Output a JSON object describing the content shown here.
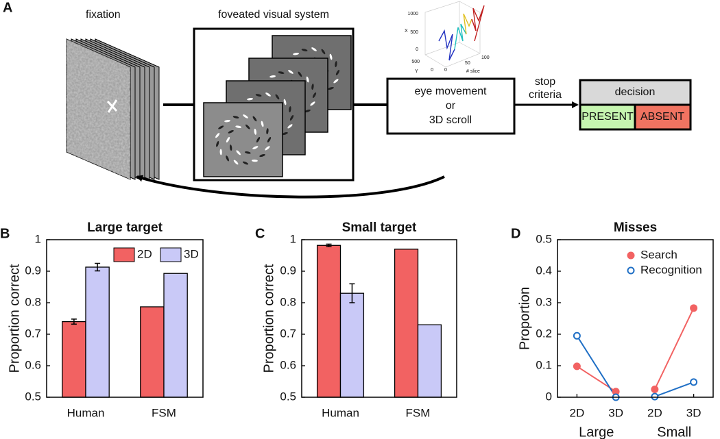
{
  "diagram": {
    "panel": "A",
    "fixation": "fixation",
    "foveated": "foveated visual system",
    "scroll": [
      "eye movement",
      "or",
      "3D scroll"
    ],
    "stop": [
      "stop",
      "criteria"
    ],
    "decision": {
      "title": "decision",
      "present": "PRESENT",
      "absent": "ABSENT"
    },
    "inset": {
      "x_label": "X",
      "y_label": "Y",
      "z_label": "# slice",
      "x_ticks": [
        "1000",
        "500",
        "0"
      ],
      "y_ticks": [
        "500",
        "0"
      ],
      "z_ticks": [
        "0",
        "50",
        "100"
      ]
    }
  },
  "chart_data": [
    {
      "type": "bar",
      "panel": "B",
      "title": "Large target",
      "ylabel": "Proportion correct",
      "categories": [
        "Human",
        "FSM"
      ],
      "ylim": [
        0.5,
        1
      ],
      "yticks": [
        0.5,
        0.6,
        0.7,
        0.8,
        0.9,
        1
      ],
      "legend": "top-right",
      "series": [
        {
          "name": "2D",
          "color": "#f26262",
          "values": [
            0.74,
            0.787
          ],
          "errors": [
            0.008,
            null
          ]
        },
        {
          "name": "3D",
          "color": "#c9c9f7",
          "values": [
            0.913,
            0.893
          ],
          "errors": [
            0.012,
            null
          ]
        }
      ]
    },
    {
      "type": "bar",
      "panel": "C",
      "title": "Small target",
      "ylabel": "Proportion correct",
      "categories": [
        "Human",
        "FSM"
      ],
      "ylim": [
        0.5,
        1
      ],
      "yticks": [
        0.5,
        0.6,
        0.7,
        0.8,
        0.9,
        1
      ],
      "series": [
        {
          "name": "2D",
          "color": "#f26262",
          "values": [
            0.982,
            0.97
          ],
          "errors": [
            0.004,
            null
          ]
        },
        {
          "name": "3D",
          "color": "#c9c9f7",
          "values": [
            0.83,
            0.73
          ],
          "errors": [
            0.03,
            null
          ]
        }
      ]
    },
    {
      "type": "line",
      "panel": "D",
      "title": "Misses",
      "ylabel": "Proportion",
      "categories": [
        "2D",
        "3D",
        "2D",
        "3D"
      ],
      "groups": [
        "Large",
        "Small"
      ],
      "ylim": [
        0,
        0.5
      ],
      "yticks": [
        0,
        0.1,
        0.2,
        0.3,
        0.4,
        0.5
      ],
      "legend": "top-right",
      "series": [
        {
          "name": "Search",
          "color": "#f26262",
          "marker": "filled",
          "values": [
            0.098,
            0.018,
            0.025,
            0.283
          ]
        },
        {
          "name": "Recognition",
          "color": "#1f6fc5",
          "marker": "open",
          "values": [
            0.195,
            0,
            0.002,
            0.048
          ]
        }
      ]
    }
  ]
}
